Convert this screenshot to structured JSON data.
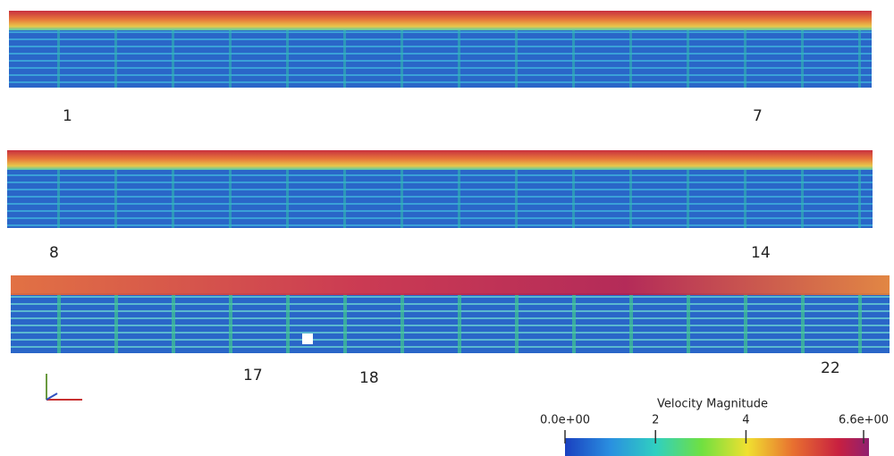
{
  "panels": [
    {
      "labels": [
        "1",
        "7"
      ]
    },
    {
      "labels": [
        "8",
        "14"
      ]
    },
    {
      "labels": [
        "17",
        "18",
        "22"
      ]
    }
  ],
  "colorbar": {
    "title": "Velocity Magnitude",
    "range": [
      0,
      6.6
    ],
    "ticks": [
      {
        "value": 0,
        "label": "0.0e+00"
      },
      2,
      4,
      {
        "value": 6.6,
        "label": "6.6e+00"
      }
    ]
  }
}
